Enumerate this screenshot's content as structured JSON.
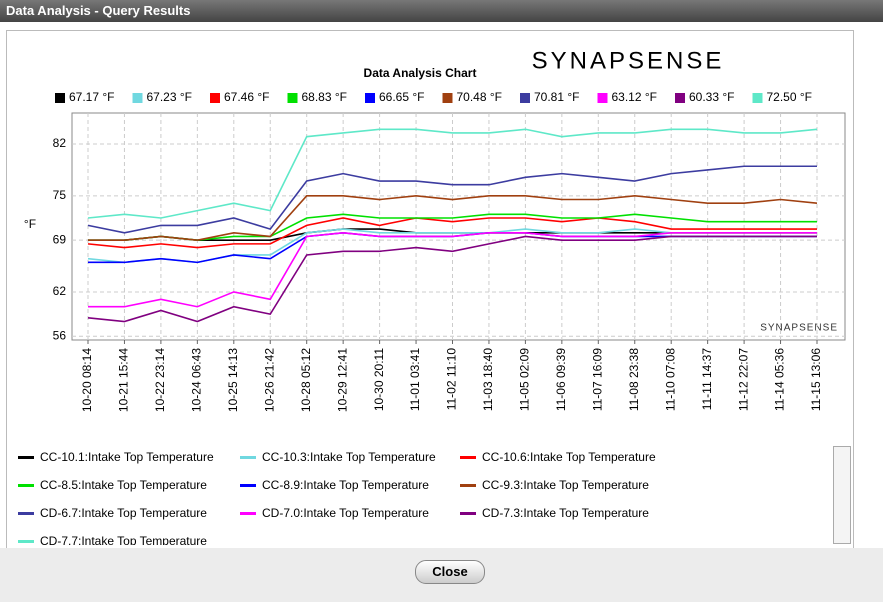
{
  "window": {
    "title": "Data Analysis - Query Results",
    "close_button": "Close"
  },
  "chart_data": {
    "type": "line",
    "title": "Data Analysis Chart",
    "brand": "SYNAPSENSE",
    "watermark": "SYNAPSENSE",
    "y_label": "°F",
    "categories": [
      "10-20 08:14",
      "10-21 15:44",
      "10-22 23:14",
      "10-24 06:43",
      "10-25 14:13",
      "10-26 21:42",
      "10-28 05:12",
      "10-29 12:41",
      "10-30 20:11",
      "11-01 03:41",
      "11-02 11:10",
      "11-03 18:40",
      "11-05 02:09",
      "11-06 09:39",
      "11-07 16:09",
      "11-08 23:38",
      "11-10 07:08",
      "11-11 14:37",
      "11-12 22:07",
      "11-14 05:36",
      "11-15 13:06"
    ],
    "ylim": [
      55.5,
      86.2
    ],
    "yticks": [
      56,
      62,
      69,
      75,
      82
    ],
    "grid": true,
    "current_values": [
      "67.17 °F",
      "67.23 °F",
      "67.46 °F",
      "68.83 °F",
      "66.65 °F",
      "70.48 °F",
      "70.81 °F",
      "63.12 °F",
      "60.33 °F",
      "72.50 °F"
    ],
    "series": [
      {
        "name": "CC-10.1:Intake Top Temperature",
        "color": "#000000",
        "values": [
          69,
          69,
          69.5,
          69,
          69,
          69,
          70,
          70.5,
          70.5,
          70,
          70,
          70,
          70,
          70,
          70,
          70,
          70,
          70,
          70,
          70,
          70
        ]
      },
      {
        "name": "CC-10.3:Intake Top Temperature",
        "color": "#70d8e0",
        "values": [
          66.5,
          66,
          66.5,
          66,
          67,
          67,
          70,
          70.5,
          70,
          70,
          70,
          70,
          70.5,
          70,
          70,
          70.5,
          70,
          70,
          70,
          70,
          70
        ]
      },
      {
        "name": "CC-10.6:Intake Top Temperature",
        "color": "#ff0000",
        "values": [
          68.5,
          68,
          68.5,
          68,
          68.5,
          68.5,
          71,
          72,
          71,
          72,
          71.5,
          72,
          72,
          71.5,
          72,
          71.5,
          70.5,
          70.5,
          70.5,
          70.5,
          70.5
        ]
      },
      {
        "name": "CC-8.5:Intake Top Temperature",
        "color": "#00e000",
        "values": [
          69,
          69,
          69.5,
          69,
          69.5,
          69.5,
          72,
          72.5,
          72,
          72,
          72,
          72.5,
          72.5,
          72,
          72,
          72.5,
          72,
          71.5,
          71.5,
          71.5,
          71.5
        ]
      },
      {
        "name": "CC-8.9:Intake Top Temperature",
        "color": "#0000ff",
        "values": [
          66,
          66,
          66.5,
          66,
          67,
          66.5,
          69.5,
          70,
          69.5,
          69.5,
          69.5,
          70,
          70,
          69.5,
          69.5,
          69.5,
          69.5,
          69.5,
          69.5,
          69.5,
          69.5
        ]
      },
      {
        "name": "CC-9.3:Intake Top Temperature",
        "color": "#a04010",
        "values": [
          69,
          69,
          69.5,
          69,
          70,
          69.5,
          75,
          75,
          74.5,
          75,
          74.5,
          75,
          75,
          74.5,
          74.5,
          75,
          74.5,
          74,
          74,
          74.5,
          74
        ]
      },
      {
        "name": "CD-6.7:Intake Top Temperature",
        "color": "#3c3ca0",
        "values": [
          71,
          70,
          71,
          71,
          72,
          70.5,
          77,
          78,
          77,
          77,
          76.5,
          76.5,
          77.5,
          78,
          77.5,
          77,
          78,
          78.5,
          79,
          79,
          79
        ]
      },
      {
        "name": "CD-7.0:Intake Top Temperature",
        "color": "#ff00ff",
        "values": [
          60,
          60,
          61,
          60,
          62,
          61,
          69.5,
          70,
          69.5,
          69.5,
          69.5,
          70,
          70,
          69.5,
          69.5,
          69.5,
          70,
          70,
          70,
          70,
          70
        ]
      },
      {
        "name": "CD-7.3:Intake Top Temperature",
        "color": "#800080",
        "values": [
          58.5,
          58,
          59.5,
          58,
          60,
          59,
          67,
          67.5,
          67.5,
          68,
          67.5,
          68.5,
          69.5,
          69,
          69,
          69,
          69.5,
          69.5,
          69.5,
          69.5,
          69.5
        ]
      },
      {
        "name": "CD-7.7:Intake Top Temperature",
        "color": "#5ee8c8",
        "values": [
          72,
          72.5,
          72,
          73,
          74,
          73,
          83,
          83.5,
          84,
          84,
          83.5,
          83.5,
          84,
          83,
          83.5,
          83.5,
          84,
          84,
          83.5,
          83.5,
          84
        ]
      }
    ]
  }
}
